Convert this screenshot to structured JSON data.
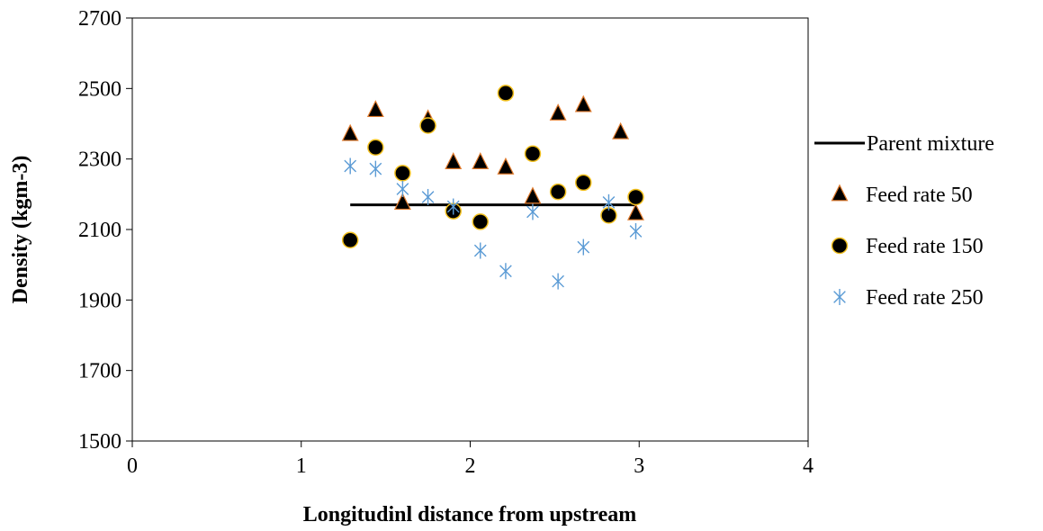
{
  "chart_data": {
    "type": "scatter",
    "title": "",
    "xlabel": "Longitudinl distance from upstream",
    "ylabel": "Density (kgm-3)",
    "xlim": [
      0,
      4
    ],
    "ylim": [
      1500,
      2700
    ],
    "x_ticks": [
      0,
      1,
      2,
      3,
      4
    ],
    "y_ticks": [
      1500,
      1700,
      1900,
      2100,
      2300,
      2500,
      2700
    ],
    "grid": false,
    "legend_position": "right",
    "series": [
      {
        "name": "Parent mixture",
        "kind": "line",
        "color": "#000000",
        "points": [
          [
            1.29,
            2170
          ],
          [
            2.98,
            2170
          ]
        ]
      },
      {
        "name": "Feed rate 50",
        "kind": "triangle",
        "color": "#000000",
        "edge_color": "#e07a2c",
        "points": [
          [
            1.29,
            2370
          ],
          [
            1.44,
            2438
          ],
          [
            1.6,
            2175
          ],
          [
            1.75,
            2412
          ],
          [
            1.9,
            2290
          ],
          [
            2.06,
            2290
          ],
          [
            2.21,
            2275
          ],
          [
            2.37,
            2192
          ],
          [
            2.52,
            2428
          ],
          [
            2.67,
            2452
          ],
          [
            2.89,
            2375
          ],
          [
            2.98,
            2145
          ]
        ]
      },
      {
        "name": "Feed rate 150",
        "kind": "circle",
        "color": "#000000",
        "edge_color": "#f2c01e",
        "points": [
          [
            1.29,
            2070
          ],
          [
            1.44,
            2333
          ],
          [
            1.6,
            2260
          ],
          [
            1.75,
            2395
          ],
          [
            1.9,
            2152
          ],
          [
            2.06,
            2122
          ],
          [
            2.21,
            2487
          ],
          [
            2.37,
            2315
          ],
          [
            2.52,
            2207
          ],
          [
            2.67,
            2233
          ],
          [
            2.82,
            2140
          ],
          [
            2.98,
            2192
          ]
        ]
      },
      {
        "name": "Feed rate 250",
        "kind": "asterisk",
        "color": "#5b9bd5",
        "points": [
          [
            1.29,
            2280
          ],
          [
            1.44,
            2272
          ],
          [
            1.6,
            2215
          ],
          [
            1.75,
            2192
          ],
          [
            1.9,
            2165
          ],
          [
            2.06,
            2040
          ],
          [
            2.21,
            1982
          ],
          [
            2.37,
            2150
          ],
          [
            2.52,
            1953
          ],
          [
            2.67,
            2050
          ],
          [
            2.82,
            2177
          ],
          [
            2.98,
            2095
          ]
        ]
      }
    ]
  }
}
